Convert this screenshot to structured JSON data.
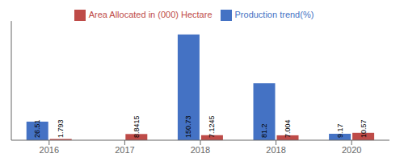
{
  "chart_data": {
    "type": "bar",
    "categories": [
      "2016",
      "2017",
      "2018",
      "2018",
      "2020"
    ],
    "series": [
      {
        "name": "Production trend(%)",
        "color": "#4472C4",
        "values": [
          26.51,
          0,
          150.73,
          81.2,
          9.17
        ]
      },
      {
        "name": "Area Allocated in (000) Hectare",
        "color": "#BE4B48",
        "values": [
          1.793,
          8.8415,
          7.1245,
          7.004,
          10.57
        ]
      }
    ],
    "ylim": [
      0,
      170
    ],
    "grid": false,
    "legend": "top",
    "data_labels": true,
    "tick_labels": "x"
  }
}
